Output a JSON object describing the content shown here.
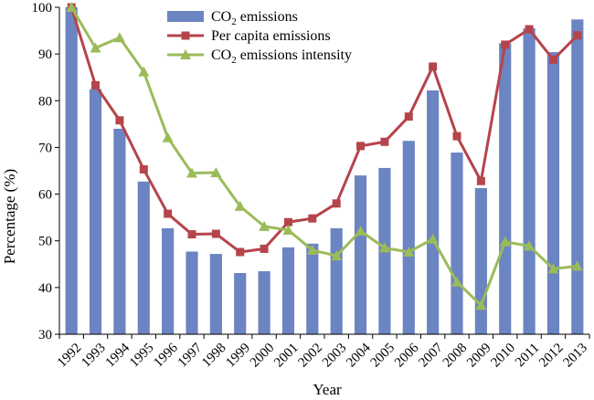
{
  "chart_data": {
    "type": "bar",
    "title": "",
    "xlabel": "Year",
    "ylabel": "Percentage (%)",
    "ylim": [
      30,
      100
    ],
    "yticks": [
      30,
      40,
      50,
      60,
      70,
      80,
      90,
      100
    ],
    "grid": false,
    "legend_position": "top",
    "categories": [
      "1992",
      "1993",
      "1994",
      "1995",
      "1996",
      "1997",
      "1998",
      "1999",
      "2000",
      "2001",
      "2002",
      "2003",
      "2004",
      "2005",
      "2006",
      "2007",
      "2008",
      "2009",
      "2010",
      "2011",
      "2012",
      "2013"
    ],
    "series": [
      {
        "name": "CO2 emissions",
        "name_prefix": "CO",
        "name_sub": "2",
        "name_suffix": " emissions",
        "type": "bar",
        "color": "#6b84c2",
        "values": [
          100,
          82.5,
          74,
          62.7,
          52.7,
          47.7,
          47.2,
          43.1,
          43.5,
          48.6,
          49.4,
          52.7,
          64,
          65.6,
          71.4,
          82.2,
          68.9,
          61.3,
          92.3,
          95.5,
          90.4,
          97.4
        ]
      },
      {
        "name": "Per capita emissions",
        "name_prefix": "Per capita emissions",
        "name_sub": "",
        "name_suffix": "",
        "type": "line",
        "marker": "square",
        "color": "#b5444b",
        "values": [
          100,
          83.3,
          75.8,
          65.3,
          55.8,
          51.4,
          51.5,
          47.6,
          48.3,
          54,
          54.8,
          58,
          70.3,
          71.2,
          76.6,
          87.3,
          72.4,
          62.8,
          92,
          95.3,
          88.8,
          94
        ]
      },
      {
        "name": "CO2 emissions intensity",
        "name_prefix": "CO",
        "name_sub": "2",
        "name_suffix": " emissions intensity",
        "type": "line",
        "marker": "triangle",
        "color": "#9bbb59",
        "values": [
          100,
          91.3,
          93.5,
          86.2,
          72.1,
          64.5,
          64.6,
          57.4,
          53.1,
          52.3,
          48,
          46.8,
          52.1,
          48.5,
          47.6,
          50.4,
          41.2,
          36.2,
          49.8,
          48.9,
          44,
          44.6
        ]
      }
    ]
  }
}
